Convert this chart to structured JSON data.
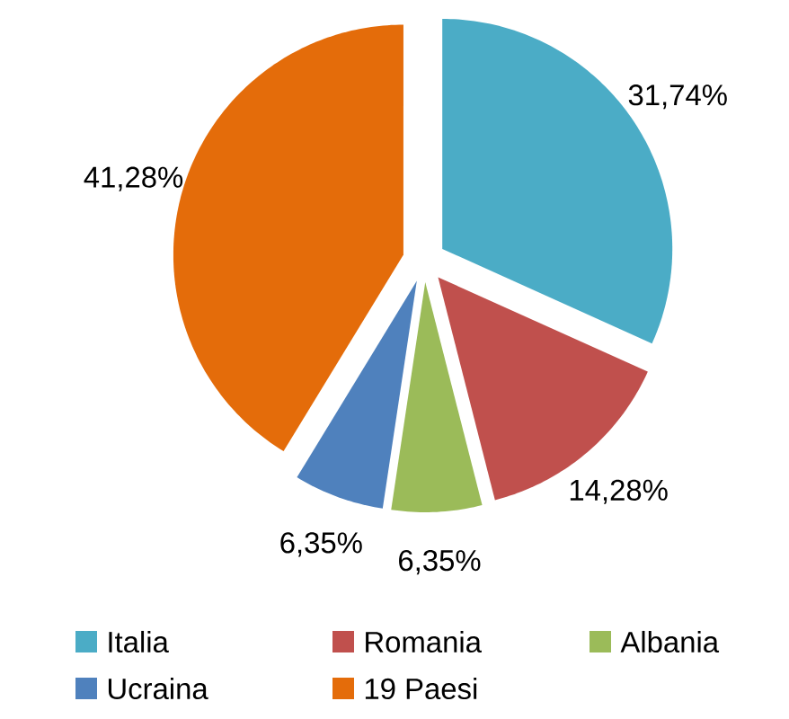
{
  "chart_data": {
    "type": "pie",
    "categories": [
      "Italia",
      "Romania",
      "Albania",
      "Ucraina",
      "19 Paesi"
    ],
    "values": [
      31.74,
      14.28,
      6.35,
      6.35,
      41.28
    ],
    "colors": [
      "#4bacc6",
      "#c0504d",
      "#9bbb59",
      "#4f81bd",
      "#e46c0a"
    ],
    "value_labels": [
      "31,74%",
      "14,28%",
      "6,35%",
      "6,35%",
      "41,28%"
    ],
    "legend": "bottom"
  }
}
